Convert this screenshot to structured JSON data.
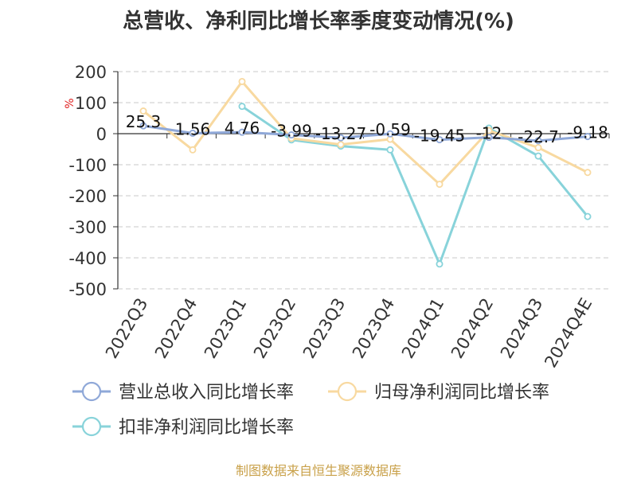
{
  "chart_data": {
    "type": "line",
    "title": "总营收、净利同比增长率季度变动情况(%)",
    "ylabel": "%",
    "xlabel": "",
    "categories": [
      "2022Q3",
      "2022Q4",
      "2023Q1",
      "2023Q2",
      "2023Q3",
      "2023Q4",
      "2024Q1",
      "2024Q2",
      "2024Q3",
      "2024Q4E"
    ],
    "ylim": [
      -500,
      200
    ],
    "yticks": [
      200,
      100,
      0,
      -100,
      -200,
      -300,
      -400,
      -500
    ],
    "ytick_labels": [
      "200",
      "100",
      "0",
      "-100",
      "-200",
      "-300",
      "-400",
      "-500"
    ],
    "grid": true,
    "legend_position": "bottom",
    "series": [
      {
        "name": "营业总收入同比增长率",
        "color": "#8fa8d8",
        "values": [
          25.3,
          1.56,
          4.76,
          -3.99,
          -13.27,
          -0.59,
          -19.45,
          -12,
          -22.7,
          -9.18
        ],
        "labels": [
          "25.3",
          "1.56",
          "4.76",
          "-3.99",
          "-13.27",
          "-0.59",
          "-19.45",
          "-12",
          "-22.7",
          "-9.18"
        ]
      },
      {
        "name": "归母净利润同比增长率",
        "color": "#f8d9a0",
        "values": [
          73,
          -52,
          168,
          -15,
          -35,
          -18,
          -163,
          10,
          -45,
          -125
        ]
      },
      {
        "name": "扣非净利润同比增长率",
        "color": "#88d3da",
        "values": [
          null,
          null,
          88,
          -20,
          -40,
          -52,
          -420,
          18,
          -72,
          -267
        ]
      }
    ]
  },
  "footer": {
    "source": "制图数据来自恒生聚源数据库"
  }
}
